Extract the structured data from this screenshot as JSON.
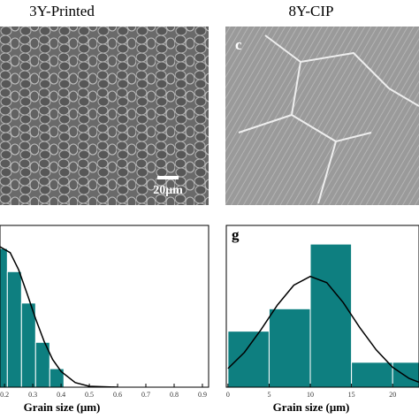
{
  "images": [
    {
      "title": "3Y-Printed",
      "scale_bar": "20μm"
    },
    {
      "title": "8Y-CIP",
      "label": "c"
    }
  ],
  "chart_data": [
    {
      "type": "histogram",
      "xlabel": "Grain size (μm)",
      "color": "#0e7f80",
      "bins": [
        0.16,
        0.21,
        0.26,
        0.31,
        0.36,
        0.41
      ],
      "values": [
        30,
        25,
        18.2,
        9.7,
        4
      ],
      "xlim": [
        0.184,
        0.922
      ],
      "xticks": [
        0.2,
        0.3,
        0.4,
        0.5,
        0.6,
        0.7,
        0.8,
        0.9
      ],
      "ylim": [
        0,
        35
      ],
      "curve": {
        "x": [
          0.184,
          0.22,
          0.25,
          0.28,
          0.31,
          0.34,
          0.37,
          0.4,
          0.45,
          0.5,
          0.6
        ],
        "y": [
          30.4,
          29.1,
          25.4,
          20.2,
          14.8,
          9.9,
          6.0,
          3.4,
          1.0,
          0.2,
          0
        ]
      }
    },
    {
      "type": "histogram",
      "label": "g",
      "xlabel": "Grain size (μm)",
      "color": "#0e7f80",
      "bins": [
        0,
        5,
        10,
        15,
        20,
        25
      ],
      "values": [
        4.5,
        6.3,
        11.5,
        2,
        2
      ],
      "xlim": [
        -0.2,
        23.2
      ],
      "xticks": [
        0,
        5,
        10,
        15,
        20
      ],
      "ylim": [
        0,
        13
      ],
      "curve": {
        "x": [
          0,
          2,
          4,
          6,
          8,
          10,
          12,
          14,
          16,
          18,
          20,
          22,
          23.2
        ],
        "y": [
          1.5,
          2.8,
          4.6,
          6.6,
          8.2,
          8.9,
          8.4,
          6.8,
          4.8,
          3.0,
          1.6,
          0.7,
          0.4
        ]
      }
    }
  ]
}
